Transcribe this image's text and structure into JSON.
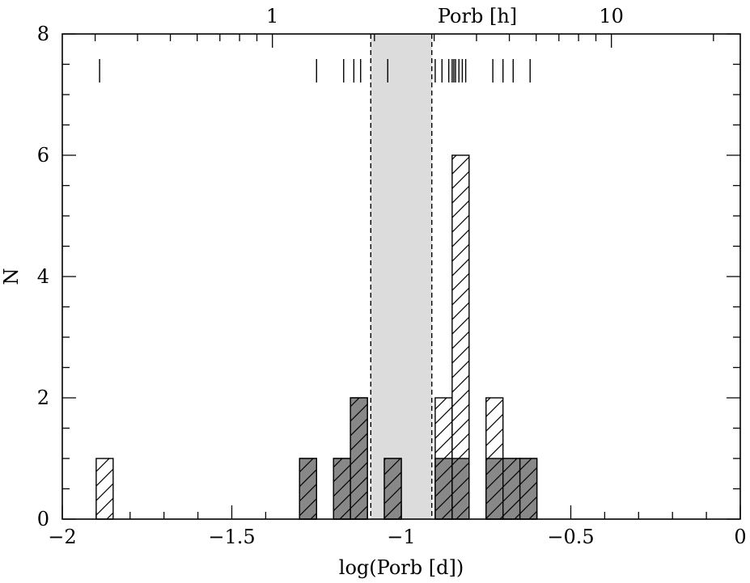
{
  "chart_data": {
    "type": "bar",
    "title": "",
    "xlabel": "log(Porb [d])",
    "ylabel": "N",
    "top_axis_label": "Porb [h]",
    "xlim": [
      -2,
      0
    ],
    "ylim": [
      0,
      8
    ],
    "bin_width": 0.05,
    "x_tick_labels": [
      "−2",
      "−1.5",
      "−1",
      "−0.5",
      "0"
    ],
    "x_tick_values": [
      -2,
      -1.5,
      -1,
      -0.5,
      0
    ],
    "y_tick_labels": [
      "0",
      "2",
      "4",
      "6",
      "8"
    ],
    "y_tick_values": [
      0,
      2,
      4,
      6,
      8
    ],
    "top_tick_labels": [
      "1",
      "10"
    ],
    "top_tick_values_hours": [
      1,
      10
    ],
    "period_gap": {
      "lower": -1.09,
      "upper": -0.91,
      "color": "#dcdcdc"
    },
    "series": [
      {
        "style": "hatched-open",
        "bins": [
          {
            "x0": -1.9,
            "x1": -1.85,
            "count": 1
          },
          {
            "x0": -1.3,
            "x1": -1.25,
            "count": 1
          },
          {
            "x0": -1.2,
            "x1": -1.15,
            "count": 1
          },
          {
            "x0": -1.15,
            "x1": -1.1,
            "count": 2
          },
          {
            "x0": -1.05,
            "x1": -1.0,
            "count": 1
          },
          {
            "x0": -0.9,
            "x1": -0.85,
            "count": 2
          },
          {
            "x0": -0.85,
            "x1": -0.8,
            "count": 6
          },
          {
            "x0": -0.75,
            "x1": -0.7,
            "count": 2
          },
          {
            "x0": -0.7,
            "x1": -0.65,
            "count": 1
          },
          {
            "x0": -0.65,
            "x1": -0.6,
            "count": 1
          }
        ]
      },
      {
        "style": "hatched-filled",
        "fill": "#888888",
        "bins": [
          {
            "x0": -1.3,
            "x1": -1.25,
            "count": 1
          },
          {
            "x0": -1.2,
            "x1": -1.15,
            "count": 1
          },
          {
            "x0": -1.15,
            "x1": -1.1,
            "count": 2
          },
          {
            "x0": -1.05,
            "x1": -1.0,
            "count": 1
          },
          {
            "x0": -0.9,
            "x1": -0.85,
            "count": 1
          },
          {
            "x0": -0.85,
            "x1": -0.8,
            "count": 1
          },
          {
            "x0": -0.75,
            "x1": -0.7,
            "count": 1
          },
          {
            "x0": -0.7,
            "x1": -0.65,
            "count": 1
          },
          {
            "x0": -0.65,
            "x1": -0.6,
            "count": 1
          }
        ]
      }
    ],
    "rug_marks_log_porb": [
      -1.89,
      -1.25,
      -1.17,
      -1.14,
      -1.12,
      -1.04,
      -0.9,
      -0.88,
      -0.86,
      -0.85,
      -0.845,
      -0.84,
      -0.83,
      -0.82,
      -0.81,
      -0.73,
      -0.7,
      -0.67,
      -0.62
    ]
  }
}
